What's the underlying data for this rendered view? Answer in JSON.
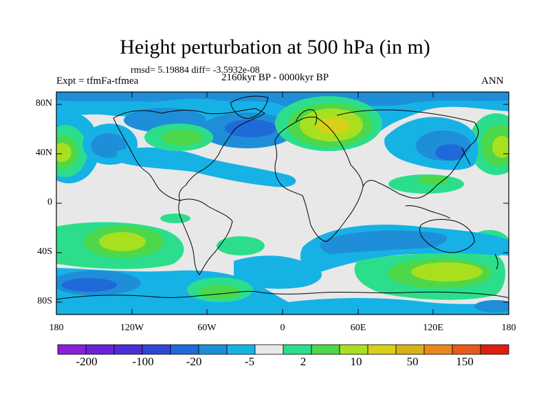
{
  "title": "Height perturbation at 500 hPa (in m)",
  "rmsd_line": "rmsd= 5.19884 diff= -3.5932e-08",
  "expt_label": "Expt = tfmFa-tfmea",
  "period_label": "2160kyr BP - 0000kyr BP",
  "season_label": "ANN",
  "lat_labels": [
    "80N",
    "40N",
    "0",
    "40S",
    "80S"
  ],
  "lon_labels": [
    "180",
    "120W",
    "60W",
    "0",
    "60E",
    "120E",
    "180"
  ],
  "colorbar": {
    "colors": [
      "#8a1fd8",
      "#6a22d8",
      "#4a2fd8",
      "#2f48d8",
      "#1f6ad8",
      "#1f8ed8",
      "#16b2e6",
      "#e8e8e8",
      "#2cde8c",
      "#4cd84a",
      "#a8e020",
      "#d8d018",
      "#d8b018",
      "#e8881c",
      "#e85a1c",
      "#e01e0e"
    ],
    "labels": [
      "-200",
      "-100",
      "-20",
      "-5",
      "2",
      "10",
      "50",
      "150"
    ]
  }
}
